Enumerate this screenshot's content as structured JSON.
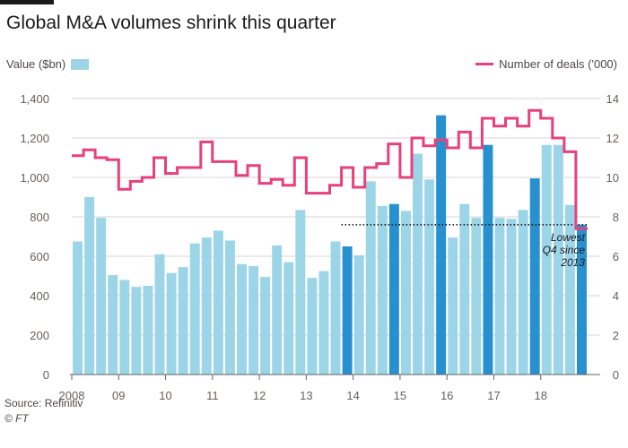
{
  "colors": {
    "bar_regular": "#9dd5e8",
    "bar_q4": "#2790cf",
    "line": "#e8407d",
    "grid": "#d9d4ce",
    "axis": "#66605c"
  },
  "chart_data": {
    "type": "bar",
    "title": "Global M&A volumes shrink this quarter",
    "legend": {
      "bar": "Value ($bn)",
      "line": "Number of deals ('000)",
      "placement": "top"
    },
    "x_tick_labels": [
      "2008",
      "09",
      "10",
      "11",
      "12",
      "13",
      "14",
      "15",
      "16",
      "17",
      "18"
    ],
    "y_left": {
      "ticks": [
        "0",
        "200",
        "400",
        "600",
        "800",
        "1,000",
        "1,200",
        "1,400"
      ],
      "lim": [
        0,
        1400
      ]
    },
    "y_right": {
      "ticks": [
        "0",
        "2",
        "4",
        "6",
        "8",
        "10",
        "12",
        "14"
      ],
      "lim": [
        0,
        14
      ]
    },
    "grid": true,
    "series": [
      {
        "name": "Value ($bn)",
        "kind": "bar",
        "values": [
          675,
          900,
          795,
          505,
          480,
          445,
          450,
          610,
          515,
          545,
          665,
          695,
          730,
          680,
          560,
          550,
          495,
          655,
          570,
          835,
          490,
          525,
          675,
          650,
          605,
          980,
          855,
          865,
          830,
          1120,
          990,
          1315,
          695,
          865,
          795,
          1165,
          795,
          790,
          835,
          995,
          1165,
          1165,
          860,
          760
        ],
        "highlight_q4": [
          23,
          27,
          31,
          35,
          39,
          43
        ]
      },
      {
        "name": "Number of deals ('000)",
        "kind": "line",
        "values": [
          11.1,
          11.4,
          11.0,
          10.9,
          9.4,
          9.8,
          10.0,
          11.0,
          10.2,
          10.5,
          10.5,
          11.8,
          10.8,
          10.8,
          10.1,
          10.6,
          9.7,
          9.9,
          9.6,
          11.0,
          9.2,
          9.2,
          9.6,
          10.5,
          9.5,
          10.5,
          10.7,
          11.7,
          10.0,
          12.0,
          11.6,
          11.9,
          11.5,
          12.3,
          11.5,
          13.0,
          12.6,
          13.0,
          12.6,
          13.4,
          13.0,
          12.0,
          11.3,
          7.4
        ]
      }
    ],
    "reference_line": {
      "value": 7.6,
      "axis": "right",
      "from_index": 23,
      "to_index": 43
    },
    "annotation": [
      "Lowest",
      "Q4 since",
      "2013"
    ]
  },
  "source": "Source: Refinitiv",
  "copyright": "© FT"
}
